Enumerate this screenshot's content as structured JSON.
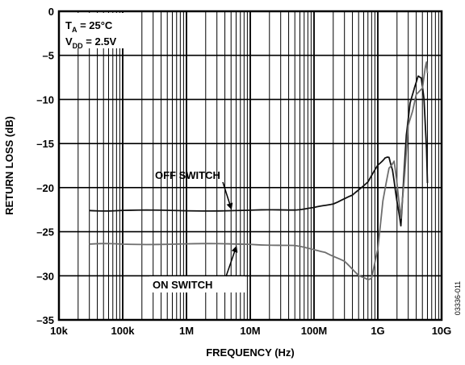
{
  "chart_data": {
    "type": "line",
    "xlabel": "FREQUENCY (Hz)",
    "ylabel": "RETURN LOSS (dB)",
    "x_scale": "log",
    "xlim": [
      10000,
      10000000000
    ],
    "ylim": [
      -35,
      0
    ],
    "grid": true,
    "x_ticks": [
      {
        "value": 10000,
        "label": "10k"
      },
      {
        "value": 100000,
        "label": "100k"
      },
      {
        "value": 1000000,
        "label": "1M"
      },
      {
        "value": 10000000,
        "label": "10M"
      },
      {
        "value": 100000000,
        "label": "100M"
      },
      {
        "value": 1000000000,
        "label": "1G"
      },
      {
        "value": 10000000000,
        "label": "10G"
      }
    ],
    "y_ticks": [
      {
        "value": 0,
        "label": "0"
      },
      {
        "value": -5,
        "label": "–5"
      },
      {
        "value": -10,
        "label": "–10"
      },
      {
        "value": -15,
        "label": "–15"
      },
      {
        "value": -20,
        "label": "–20"
      },
      {
        "value": -25,
        "label": "–25"
      },
      {
        "value": -30,
        "label": "–30"
      },
      {
        "value": -35,
        "label": "–35"
      }
    ],
    "conditions": [
      {
        "main": "T",
        "sub": "A",
        "rest": " = 25°C"
      },
      {
        "main": "V",
        "sub": "DD",
        "rest": " = 2.5V"
      }
    ],
    "series": [
      {
        "name": "OFF SWITCH",
        "color": "#111111",
        "points": [
          [
            30000,
            -22.6
          ],
          [
            100000,
            -22.6
          ],
          [
            1000000,
            -22.6
          ],
          [
            10000000,
            -22.6
          ],
          [
            50000000,
            -22.5
          ],
          [
            100000000,
            -22.3
          ],
          [
            200000000,
            -21.8
          ],
          [
            400000000,
            -20.9
          ],
          [
            700000000,
            -19.3
          ],
          [
            1000000000,
            -17.5
          ],
          [
            1300000000,
            -16.6
          ],
          [
            1500000000,
            -16.6
          ],
          [
            1700000000,
            -18.0
          ],
          [
            1900000000,
            -20.5
          ],
          [
            2100000000,
            -22.5
          ],
          [
            2300000000,
            -24.3
          ],
          [
            2500000000,
            -20.0
          ],
          [
            2800000000,
            -14.0
          ],
          [
            3200000000,
            -10.5
          ],
          [
            3800000000,
            -8.5
          ],
          [
            4300000000,
            -7.4
          ],
          [
            4800000000,
            -7.5
          ],
          [
            5300000000,
            -10.0
          ],
          [
            5800000000,
            -15.5
          ],
          [
            6000000000,
            -19.5
          ]
        ]
      },
      {
        "name": "ON SWITCH",
        "color": "#6e6e6e",
        "points": [
          [
            30000,
            -26.4
          ],
          [
            100000,
            -26.4
          ],
          [
            1000000,
            -26.4
          ],
          [
            10000000,
            -26.4
          ],
          [
            50000000,
            -26.6
          ],
          [
            150000000,
            -27.3
          ],
          [
            300000000,
            -28.4
          ],
          [
            500000000,
            -29.9
          ],
          [
            700000000,
            -30.5
          ],
          [
            800000000,
            -30.2
          ],
          [
            1000000000,
            -27.0
          ],
          [
            1200000000,
            -21.5
          ],
          [
            1500000000,
            -17.8
          ],
          [
            1800000000,
            -17.0
          ],
          [
            2000000000,
            -19.5
          ],
          [
            2300000000,
            -23.5
          ],
          [
            2600000000,
            -19.0
          ],
          [
            3000000000,
            -13.0
          ],
          [
            3500000000,
            -11.3
          ],
          [
            4000000000,
            -9.5
          ],
          [
            4500000000,
            -9.0
          ],
          [
            5000000000,
            -8.8
          ],
          [
            5500000000,
            -6.5
          ],
          [
            5800000000,
            -5.8
          ],
          [
            6000000000,
            -7.0
          ]
        ]
      }
    ],
    "annotations": [
      {
        "text": "OFF SWITCH",
        "series": "OFF SWITCH"
      },
      {
        "text": "ON SWITCH",
        "series": "ON SWITCH"
      }
    ],
    "figure_id": "03336-011"
  }
}
